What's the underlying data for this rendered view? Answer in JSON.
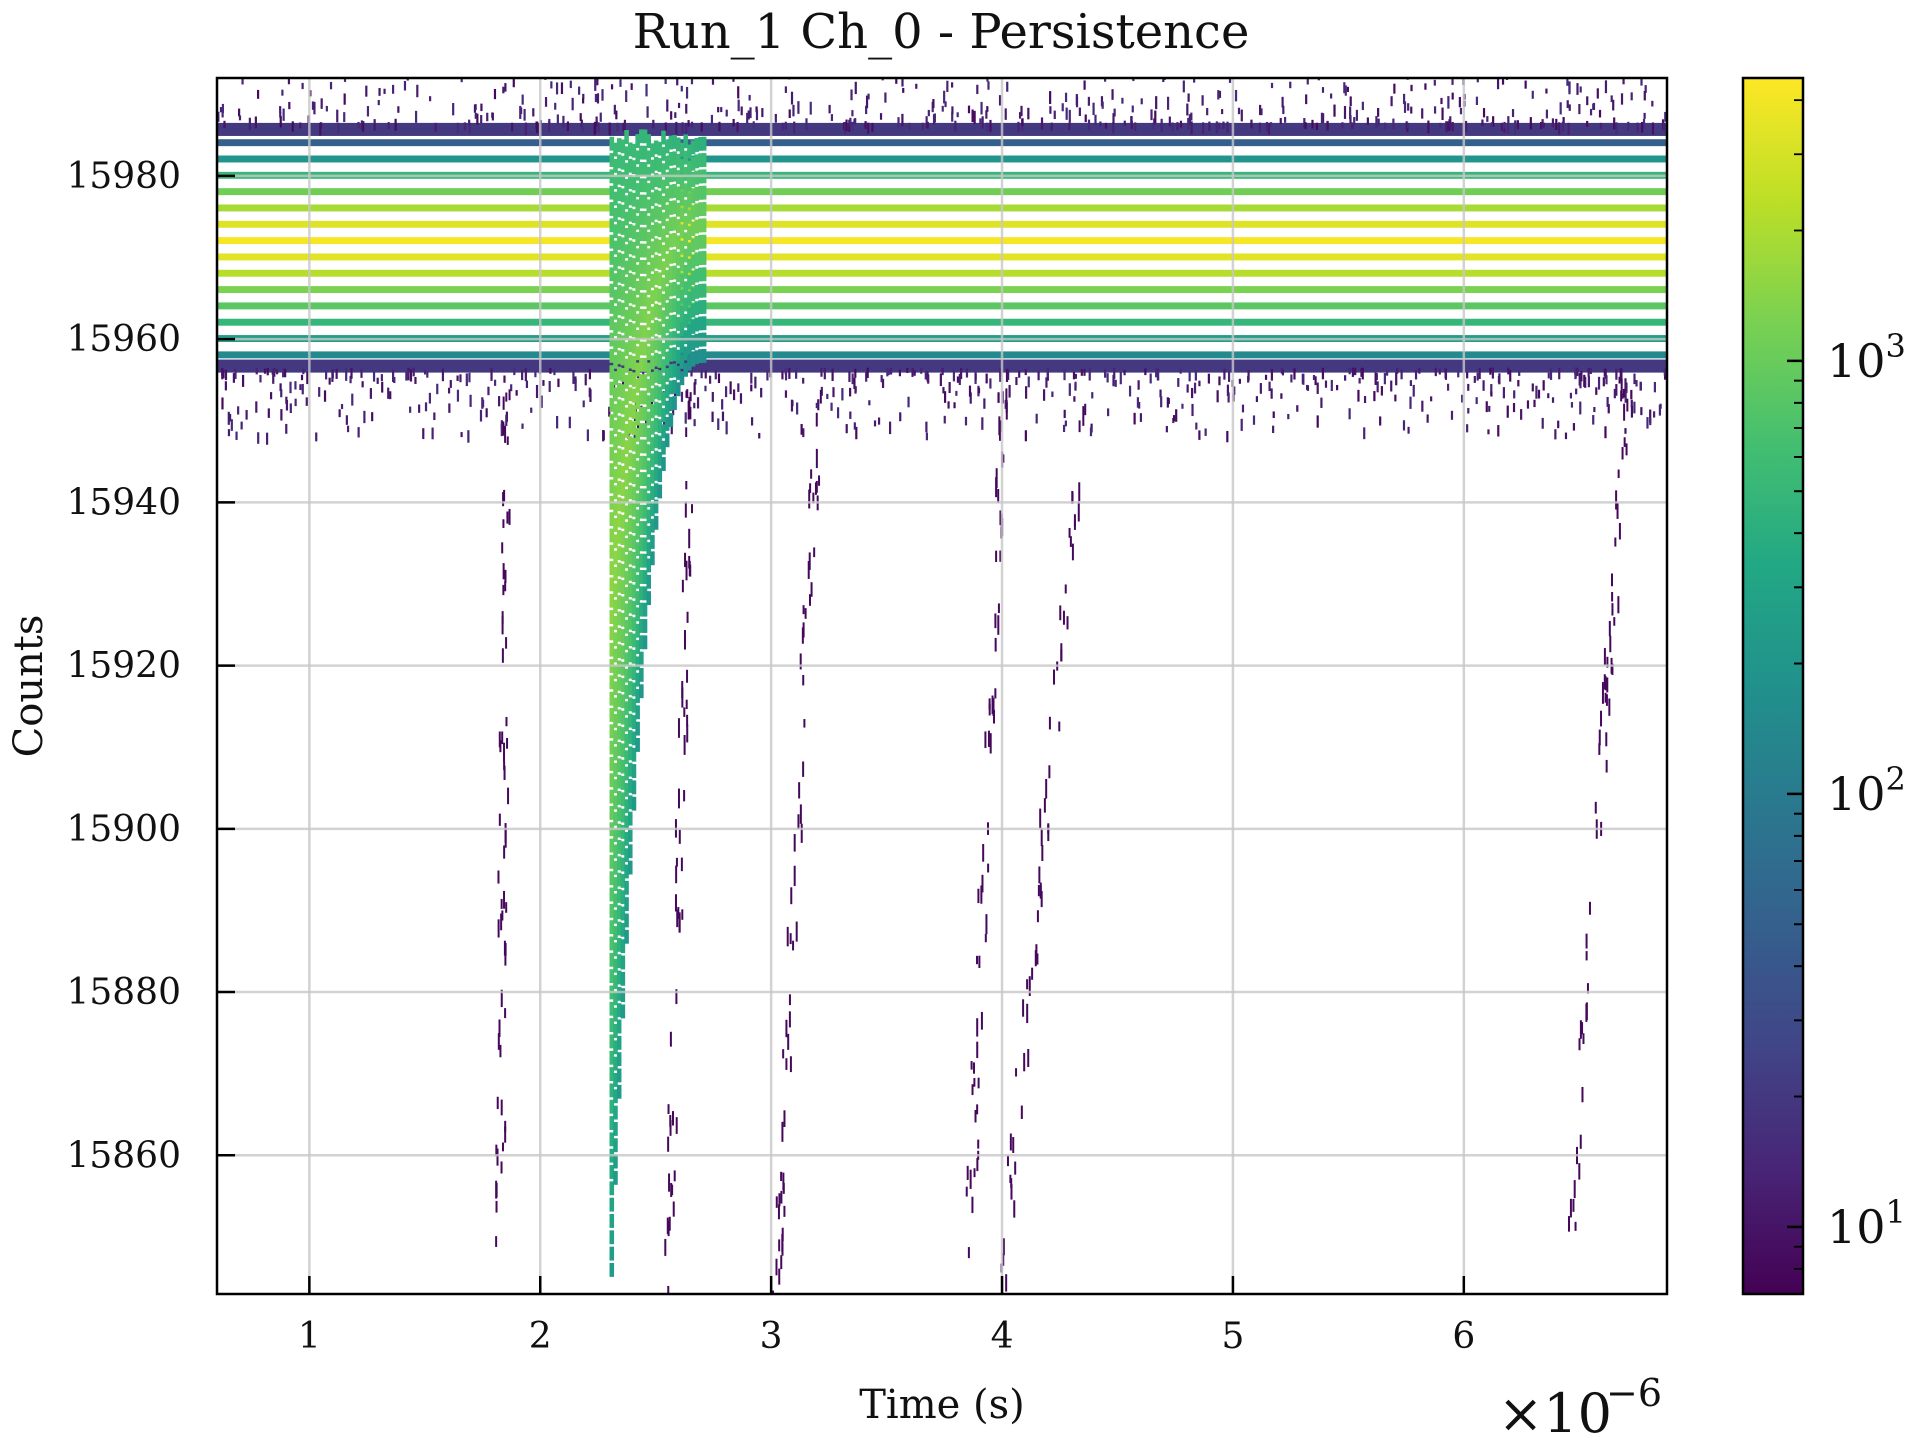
{
  "chart_data": {
    "type": "heatmap",
    "title": "Run_1 Ch_0 - Persistence",
    "xlabel": "Time (s)",
    "ylabel": "Counts",
    "x_offset_text": "×10",
    "x_offset_exponent": "−6",
    "xlim": [
      6e-07,
      6.88e-06
    ],
    "ylim": [
      15843,
      15992
    ],
    "x_ticks": [
      {
        "value": 1e-06,
        "label": "1"
      },
      {
        "value": 2e-06,
        "label": "2"
      },
      {
        "value": 3e-06,
        "label": "3"
      },
      {
        "value": 4e-06,
        "label": "4"
      },
      {
        "value": 5e-06,
        "label": "5"
      },
      {
        "value": 6e-06,
        "label": "6"
      }
    ],
    "y_ticks": [
      {
        "value": 15860,
        "label": "15860"
      },
      {
        "value": 15880,
        "label": "15880"
      },
      {
        "value": 15900,
        "label": "15900"
      },
      {
        "value": 15920,
        "label": "15920"
      },
      {
        "value": 15940,
        "label": "15940"
      },
      {
        "value": 15960,
        "label": "15960"
      },
      {
        "value": 15980,
        "label": "15980"
      }
    ],
    "grid": true,
    "colorbar": {
      "colormap": "viridis",
      "scale": "log",
      "range": [
        7,
        4500
      ],
      "ticks": [
        {
          "value": 10,
          "base": "10",
          "exp": "1"
        },
        {
          "value": 100,
          "base": "10",
          "exp": "2"
        },
        {
          "value": 1000,
          "base": "10",
          "exp": "3"
        }
      ]
    },
    "baseline_band": {
      "count_levels": [
        15958,
        15960,
        15962,
        15964,
        15966,
        15968,
        15970,
        15972,
        15974,
        15976,
        15978,
        15980,
        15982,
        15984
      ],
      "occupancy": [
        150,
        250,
        500,
        850,
        1250,
        2200,
        3400,
        4200,
        3300,
        1900,
        1100,
        500,
        200,
        50
      ]
    },
    "pulse": {
      "start_time": 2.3e-06,
      "min_counts": 15846,
      "recovery_time": 2.7e-06,
      "peak_occupancy": 1500
    },
    "sparse_traces": [
      {
        "time_from": 2.65e-06,
        "time_to": 2.55e-06
      },
      {
        "time_from": 3.2e-06,
        "time_to": 3.02e-06
      },
      {
        "time_from": 4e-06,
        "time_to": 3.85e-06
      },
      {
        "time_from": 4.35e-06,
        "time_to": 4e-06
      },
      {
        "time_from": 6.7e-06,
        "time_to": 6.45e-06
      },
      {
        "time_from": 1.85e-06,
        "time_to": 1.82e-06
      }
    ]
  }
}
